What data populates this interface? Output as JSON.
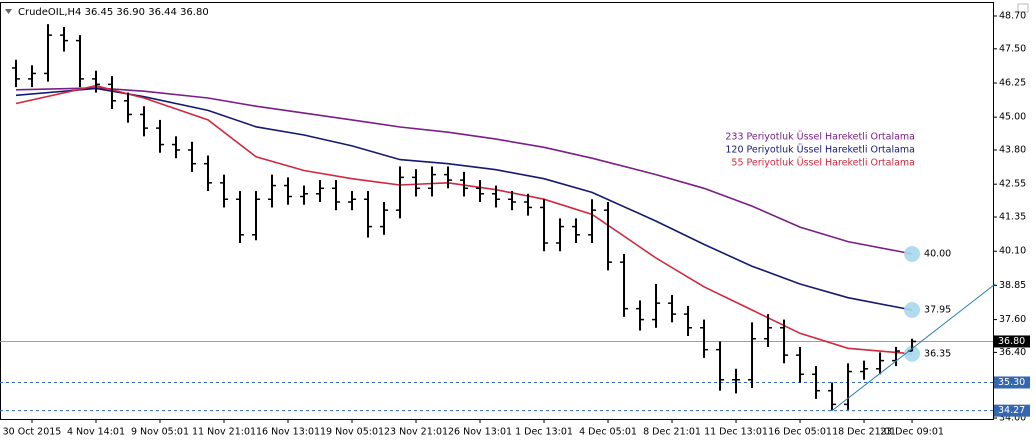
{
  "chart_data": {
    "type": "ohlc",
    "header": {
      "symbol": "CrudeOIL,H4",
      "ohlc_labels": [
        "36.45",
        "36.90",
        "36.44",
        "36.80"
      ]
    },
    "categories": [
      null,
      "30 Oct 2015",
      null,
      null,
      null,
      "4 Nov 14:01",
      null,
      null,
      null,
      "9 Nov 05:01",
      null,
      null,
      null,
      "11 Nov 21:01",
      null,
      null,
      null,
      "16 Nov 13:01",
      null,
      null,
      null,
      "19 Nov 05:01",
      null,
      null,
      null,
      "23 Nov 21:01",
      null,
      null,
      null,
      "26 Nov 13:01",
      null,
      null,
      null,
      "1 Dec 13:01",
      null,
      null,
      null,
      "4 Dec 05:01",
      null,
      null,
      null,
      "8 Dec 21:01",
      null,
      null,
      null,
      "11 Dec 13:01",
      null,
      null,
      null,
      "16 Dec 05:01",
      null,
      null,
      null,
      "18 Dec 21:01",
      null,
      null,
      "23 Dec 09:01"
    ],
    "open": [
      46.8,
      46.4,
      46.6,
      48.0,
      47.8,
      46.4,
      46.2,
      45.6,
      45.1,
      44.6,
      44.0,
      43.8,
      43.3,
      42.6,
      42.0,
      40.7,
      42.0,
      42.5,
      42.1,
      42.2,
      42.4,
      41.9,
      42.0,
      41.0,
      41.6,
      42.8,
      42.4,
      42.9,
      42.7,
      42.4,
      42.2,
      42.0,
      41.9,
      41.7,
      40.4,
      41.0,
      40.7,
      41.6,
      39.7,
      38.0,
      37.6,
      38.2,
      37.8,
      37.3,
      36.5,
      35.4,
      35.4,
      36.9,
      37.3,
      36.3,
      35.6,
      35.0,
      34.5,
      35.7,
      35.8,
      36.1,
      36.45
    ],
    "high": [
      47.1,
      46.9,
      48.4,
      48.3,
      48.0,
      46.7,
      46.5,
      45.9,
      45.4,
      44.9,
      44.3,
      44.1,
      43.6,
      42.9,
      42.3,
      42.3,
      42.9,
      42.8,
      42.5,
      42.7,
      42.7,
      42.3,
      42.3,
      41.9,
      43.2,
      43.1,
      43.2,
      43.2,
      43.0,
      42.7,
      42.5,
      42.3,
      42.2,
      42.0,
      41.3,
      41.3,
      42.0,
      41.9,
      40.0,
      38.3,
      38.9,
      38.5,
      38.1,
      37.6,
      36.8,
      35.8,
      37.5,
      37.8,
      37.6,
      36.6,
      35.9,
      35.3,
      36.0,
      36.1,
      36.4,
      36.6,
      36.9
    ],
    "low": [
      46.1,
      46.1,
      46.3,
      47.4,
      46.1,
      45.9,
      45.3,
      44.8,
      44.3,
      43.7,
      43.5,
      43.0,
      42.3,
      41.7,
      40.4,
      40.5,
      41.7,
      41.8,
      41.8,
      41.9,
      41.6,
      41.6,
      40.6,
      40.7,
      41.3,
      42.1,
      42.1,
      42.4,
      42.1,
      41.9,
      41.7,
      41.6,
      41.4,
      40.1,
      40.1,
      40.4,
      40.4,
      39.4,
      37.7,
      37.2,
      37.3,
      37.5,
      37.0,
      36.2,
      35.0,
      34.9,
      35.1,
      36.6,
      36.0,
      35.3,
      34.7,
      34.27,
      34.3,
      35.4,
      35.6,
      35.9,
      36.44
    ],
    "close": [
      46.4,
      46.6,
      48.0,
      47.8,
      46.4,
      46.2,
      45.6,
      45.1,
      44.6,
      44.0,
      43.8,
      43.3,
      42.6,
      42.0,
      40.7,
      42.0,
      42.5,
      42.1,
      42.2,
      42.4,
      41.9,
      42.0,
      41.0,
      41.6,
      42.8,
      42.4,
      42.9,
      42.7,
      42.4,
      42.2,
      42.0,
      41.9,
      41.7,
      40.4,
      41.0,
      40.7,
      41.6,
      39.7,
      38.0,
      37.6,
      38.2,
      37.8,
      37.3,
      36.5,
      35.4,
      35.4,
      36.9,
      37.3,
      36.3,
      35.6,
      35.0,
      34.5,
      35.7,
      35.8,
      36.1,
      36.45,
      36.8
    ],
    "color": "#000000",
    "overlays": [
      {
        "name": "233 Periyotluk Üssel Hareketli Ortalama",
        "color": "#7a1f86",
        "x": [
          0,
          5,
          8,
          12,
          15,
          18,
          21,
          24,
          27,
          30,
          33,
          36,
          40,
          43,
          46,
          49,
          52,
          56
        ],
        "values": [
          46.0,
          46.07,
          45.95,
          45.7,
          45.4,
          45.15,
          44.9,
          44.64,
          44.45,
          44.2,
          43.9,
          43.5,
          42.9,
          42.4,
          41.75,
          40.98,
          40.45,
          40.0
        ],
        "value_labels": [
          null,
          null,
          null,
          null,
          null,
          null,
          null,
          null,
          null,
          null,
          null,
          null,
          null,
          null,
          null,
          null,
          null,
          "40.00"
        ]
      },
      {
        "name": "120 Periyotluk Üssel Hareketli Ortalama",
        "color": "#141a6e",
        "x": [
          0,
          5,
          8,
          12,
          15,
          18,
          21,
          24,
          27,
          30,
          33,
          36,
          40,
          43,
          46,
          49,
          52,
          56
        ],
        "values": [
          45.8,
          46.05,
          45.75,
          45.25,
          44.65,
          44.35,
          43.95,
          43.45,
          43.3,
          43.08,
          42.75,
          42.25,
          41.2,
          40.35,
          39.55,
          38.9,
          38.4,
          37.95
        ],
        "value_labels": [
          null,
          null,
          null,
          null,
          null,
          null,
          null,
          null,
          null,
          null,
          null,
          null,
          null,
          null,
          null,
          null,
          null,
          "37.95"
        ]
      },
      {
        "name": "55 Periyotluk Üssel Hareketli Ortalama",
        "color": "#d0283e",
        "x": [
          0,
          5,
          8,
          12,
          15,
          18,
          21,
          24,
          27,
          30,
          33,
          36,
          40,
          43,
          46,
          49,
          52,
          56
        ],
        "values": [
          45.5,
          46.15,
          45.7,
          44.9,
          43.55,
          43.05,
          42.75,
          42.52,
          42.6,
          42.35,
          42.0,
          41.45,
          39.85,
          38.8,
          37.95,
          37.1,
          36.55,
          36.35
        ],
        "value_labels": [
          null,
          null,
          null,
          null,
          null,
          null,
          null,
          null,
          null,
          null,
          null,
          null,
          null,
          null,
          null,
          null,
          null,
          "36.35"
        ]
      }
    ],
    "trendline": {
      "color": "#2a80a8",
      "x": [
        51,
        61.2
      ],
      "values": [
        34.27,
        38.9
      ]
    },
    "price_levels": [
      {
        "value": 36.8,
        "label": "36.80",
        "style": "solid",
        "color": "#000000"
      },
      {
        "value": 35.3,
        "label": "35.30",
        "style": "dashed",
        "color": "#3566b0"
      },
      {
        "value": 34.27,
        "label": "34.27",
        "style": "dashed",
        "color": "#3566b0"
      }
    ],
    "xlim": [
      -1,
      61.06
    ],
    "ylim": [
      33.965,
      49.175
    ],
    "yticks": [
      {
        "value": 48.7,
        "label": "48.70"
      },
      {
        "value": 47.5,
        "label": "47.50"
      },
      {
        "value": 46.25,
        "label": "46.25"
      },
      {
        "value": 45.0,
        "label": "45.00"
      },
      {
        "value": 43.8,
        "label": "43.80"
      },
      {
        "value": 42.55,
        "label": "42.55"
      },
      {
        "value": 41.35,
        "label": "41.35"
      },
      {
        "value": 40.1,
        "label": "40.10"
      },
      {
        "value": 38.85,
        "label": "38.85"
      },
      {
        "value": 37.6,
        "label": "37.60"
      },
      {
        "value": 36.4,
        "label": "36.40"
      },
      {
        "value": 34.0,
        "label": "34.00"
      }
    ],
    "grid": false
  }
}
